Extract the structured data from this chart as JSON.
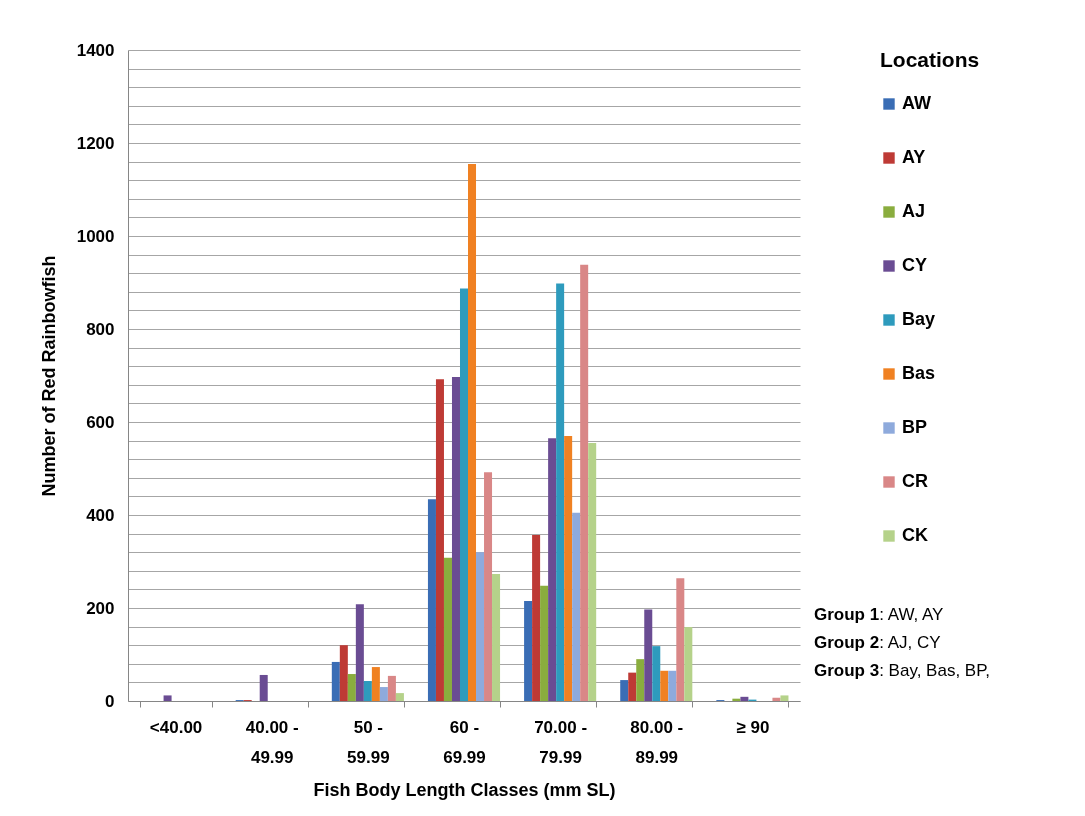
{
  "chart_data": {
    "type": "bar",
    "xlabel": "Fish Body Length Classes (mm SL)",
    "ylabel": "Number of Red Rainbowfish",
    "legend_title": "Locations",
    "legend": "right",
    "categories": [
      "<40.00",
      "40.00 - 49.99",
      "50 - 59.99",
      "60 - 69.99",
      "70.00 - 79.99",
      "80.00 - 89.99",
      "≥ 90"
    ],
    "series": [
      {
        "name": "AW",
        "color": "#3a6db5",
        "values": [
          0,
          2,
          84,
          434,
          215,
          45,
          2
        ]
      },
      {
        "name": "AY",
        "color": "#be3a35",
        "values": [
          0,
          2,
          120,
          692,
          357,
          61,
          0
        ]
      },
      {
        "name": "AJ",
        "color": "#8aad3e",
        "values": [
          0,
          0,
          58,
          308,
          248,
          90,
          5
        ]
      },
      {
        "name": "CY",
        "color": "#6a4c93",
        "values": [
          12,
          56,
          208,
          697,
          565,
          197,
          9
        ]
      },
      {
        "name": "Bay",
        "color": "#2e9bbd",
        "values": [
          0,
          0,
          43,
          887,
          898,
          118,
          3
        ]
      },
      {
        "name": "Bas",
        "color": "#f08122",
        "values": [
          0,
          0,
          73,
          1155,
          570,
          65,
          0
        ]
      },
      {
        "name": "BP",
        "color": "#8eaadc",
        "values": [
          0,
          0,
          30,
          320,
          405,
          65,
          0
        ]
      },
      {
        "name": "CR",
        "color": "#d98787",
        "values": [
          0,
          0,
          54,
          492,
          938,
          264,
          7
        ]
      },
      {
        "name": "CK",
        "color": "#b5d28a",
        "values": [
          0,
          0,
          17,
          273,
          555,
          159,
          12
        ]
      }
    ],
    "ylim": [
      0,
      1400
    ],
    "yticks": [
      0,
      {
        "value": 40,
        "label": null
      },
      {
        "value": 80,
        "label": null
      },
      {
        "value": 120,
        "label": null
      },
      {
        "value": 160,
        "label": null
      },
      200,
      {
        "value": 240,
        "label": null
      },
      {
        "value": 280,
        "label": null
      },
      {
        "value": 320,
        "label": null
      },
      {
        "value": 360,
        "label": null
      },
      400,
      {
        "value": 440,
        "label": null
      },
      {
        "value": 480,
        "label": null
      },
      {
        "value": 520,
        "label": null
      },
      {
        "value": 560,
        "label": null
      },
      600,
      {
        "value": 640,
        "label": null
      },
      {
        "value": 680,
        "label": null
      },
      {
        "value": 720,
        "label": null
      },
      {
        "value": 760,
        "label": null
      },
      800,
      {
        "value": 840,
        "label": null
      },
      {
        "value": 880,
        "label": null
      },
      {
        "value": 920,
        "label": null
      },
      {
        "value": 960,
        "label": null
      },
      1000,
      {
        "value": 1040,
        "label": null
      },
      {
        "value": 1080,
        "label": null
      },
      {
        "value": 1120,
        "label": null
      },
      {
        "value": 1160,
        "label": null
      },
      1200,
      {
        "value": 1240,
        "label": null
      },
      {
        "value": 1280,
        "label": null
      },
      {
        "value": 1320,
        "label": null
      },
      {
        "value": 1360,
        "label": null
      },
      1400
    ],
    "grid": "y",
    "annotations": [
      "Group 1: AW, AY",
      "Group 2: AJ, CY",
      "Group 3: Bay, Bas, BP,"
    ]
  }
}
